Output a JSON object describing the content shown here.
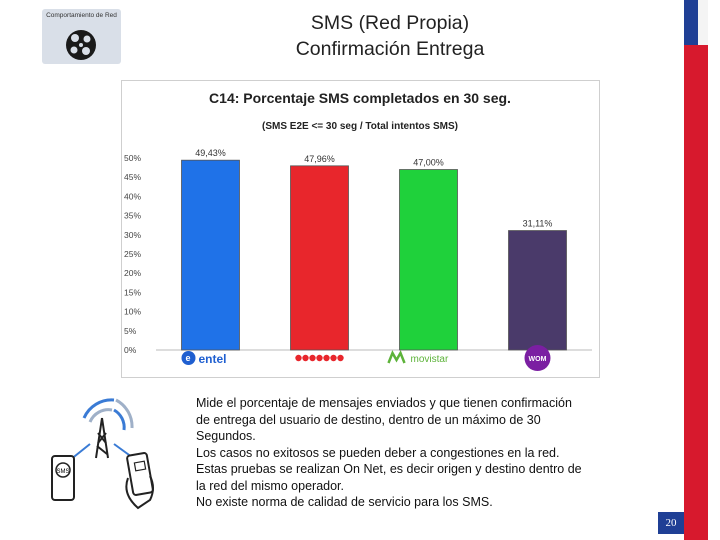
{
  "logo": {
    "caption": "Comportamiento de Red"
  },
  "header": {
    "title_line1": "SMS (Red Propia)",
    "title_line2": "Confirmación Entrega"
  },
  "description": [
    "Mide el porcentaje de mensajes enviados y que tienen confirmación",
    "de entrega del usuario de destino, dentro de un máximo de 30",
    "Segundos.",
    "Los casos no exitosos se pueden deber a congestiones en la red.",
    "Estas pruebas se realizan On Net, es decir origen y destino dentro de",
    "la red del mismo operador.",
    "No existe  norma  de calidad de servicio para los SMS."
  ],
  "page_number": "20",
  "colors": {
    "flag_blue": "#1f3f95",
    "flag_red": "#d7192d"
  },
  "chart_data": {
    "type": "bar",
    "title": "C14: Porcentaje SMS completados  en 30 seg.",
    "subtitle": "(SMS E2E <= 30 seg / Total intentos SMS)",
    "categories": [
      "entel",
      "",
      "movistar",
      "WOM"
    ],
    "values": [
      49.43,
      47.96,
      47.0,
      31.11
    ],
    "data_labels": [
      "49,43%",
      "47,96%",
      "47,00%",
      "31,11%"
    ],
    "bar_colors": [
      "#1f72e8",
      "#e8262c",
      "#1fd13b",
      "#4a3a6a"
    ],
    "ylim": [
      0,
      50
    ],
    "yticks": [
      "0%",
      "5%",
      "10%",
      "15%",
      "20%",
      "25%",
      "30%",
      "35%",
      "40%",
      "45%",
      "50%"
    ],
    "grid": false,
    "xlabel": "",
    "ylabel": ""
  }
}
